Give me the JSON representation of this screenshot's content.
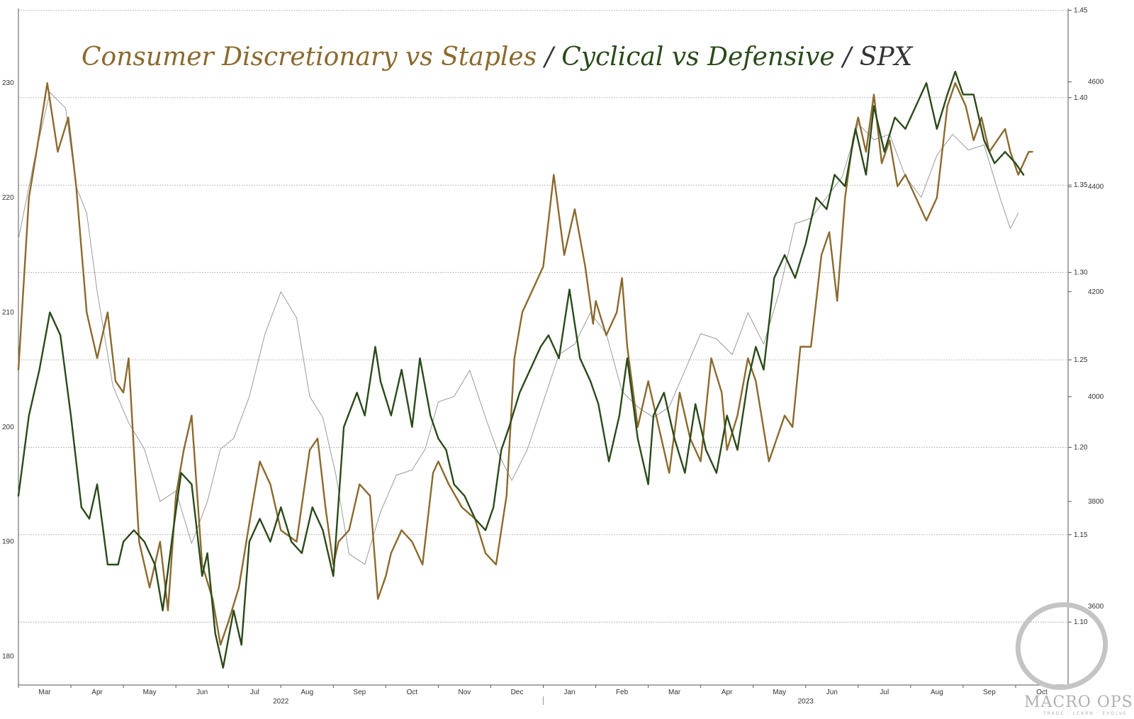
{
  "chart_data": {
    "type": "line",
    "title_parts": [
      {
        "text": "Consumer Discretionary vs Staples",
        "color": "#8a6a2e"
      },
      {
        "text": " / ",
        "color": "#333333"
      },
      {
        "text": "Cyclical vs Defensive",
        "color": "#2a4a1a"
      },
      {
        "text": " / SPX",
        "color": "#333333"
      }
    ],
    "x_months": [
      "Mar",
      "Apr",
      "May",
      "Jun",
      "Jul",
      "Aug",
      "Sep",
      "Oct",
      "Nov",
      "Dec",
      "Jan",
      "Feb",
      "Mar",
      "Apr",
      "May",
      "Jun",
      "Jul",
      "Aug",
      "Sep",
      "Oct"
    ],
    "x_years": [
      "2022",
      "2023"
    ],
    "x_range": [
      0,
      20
    ],
    "left_axis": {
      "ticks": [
        180,
        190,
        200,
        210,
        220,
        230
      ],
      "range": [
        177.5,
        236.5
      ]
    },
    "ratio_axis": {
      "ticks": [
        1.1,
        1.15,
        1.2,
        1.25,
        1.3,
        1.35,
        1.4,
        1.45
      ],
      "range": [
        1.064,
        1.451
      ]
    },
    "spx_axis": {
      "ticks": [
        3600,
        3800,
        4000,
        4200,
        4400,
        4600
      ],
      "range": [
        3450,
        4740
      ]
    },
    "grid": "horizontal dotted",
    "series": [
      {
        "name": "Consumer Discretionary vs Staples",
        "color": "#8a6a2e",
        "axis": "left",
        "x": [
          0,
          0.2,
          0.38,
          0.55,
          0.75,
          0.95,
          1.1,
          1.3,
          1.5,
          1.7,
          1.85,
          2.0,
          2.1,
          2.3,
          2.5,
          2.7,
          2.85,
          3.0,
          3.15,
          3.3,
          3.5,
          3.7,
          3.85,
          4.0,
          4.2,
          4.45,
          4.6,
          4.8,
          5.0,
          5.3,
          5.55,
          5.7,
          5.85,
          6.0,
          6.1,
          6.3,
          6.5,
          6.7,
          6.85,
          7.0,
          7.1,
          7.3,
          7.5,
          7.7,
          7.9,
          8.0,
          8.2,
          8.45,
          8.7,
          8.9,
          9.1,
          9.3,
          9.45,
          9.6,
          9.8,
          10.0,
          10.2,
          10.4,
          10.6,
          10.8,
          10.95,
          11.0,
          11.2,
          11.4,
          11.5,
          11.6,
          11.8,
          12.0,
          12.15,
          12.4,
          12.6,
          12.8,
          13.0,
          13.2,
          13.4,
          13.5,
          13.7,
          13.9,
          14.05,
          14.3,
          14.45,
          14.6,
          14.75,
          14.9,
          15.1,
          15.3,
          15.45,
          15.6,
          15.75,
          15.9,
          16.0,
          16.15,
          16.3,
          16.45,
          16.6,
          16.75,
          16.9,
          17.1,
          17.3,
          17.5,
          17.7,
          17.85,
          18.05,
          18.2,
          18.35,
          18.5,
          18.65,
          18.8,
          18.9,
          19.05,
          19.15,
          19.25,
          19.32
        ],
        "values": [
          205,
          220,
          225,
          230,
          224,
          227,
          221,
          210,
          206,
          210,
          204,
          203,
          206,
          190,
          186,
          190,
          184,
          194,
          198,
          201,
          188,
          185,
          181,
          183,
          186,
          193,
          197,
          195,
          191,
          190,
          198,
          199,
          193,
          188,
          190,
          191,
          195,
          194,
          185,
          187,
          189,
          191,
          190,
          188,
          196,
          197,
          195,
          193,
          192,
          189,
          188,
          194,
          206,
          210,
          212,
          214,
          222,
          215,
          219,
          214,
          209,
          211,
          208,
          210,
          213,
          207,
          200,
          204,
          201,
          196,
          203,
          199,
          197,
          206,
          203,
          198,
          201,
          206,
          204,
          197,
          199,
          201,
          200,
          207,
          207,
          215,
          217,
          211,
          220,
          225,
          227,
          224,
          229,
          223,
          225,
          221,
          222,
          220,
          218,
          220,
          228,
          230,
          228,
          225,
          227,
          224,
          225,
          226,
          224,
          222,
          223,
          224,
          224
        ]
      },
      {
        "name": "Cyclical vs Defensive",
        "color": "#2a4a1a",
        "axis": "left",
        "x": [
          0,
          0.2,
          0.4,
          0.6,
          0.8,
          1.0,
          1.2,
          1.35,
          1.5,
          1.7,
          1.9,
          2.0,
          2.2,
          2.4,
          2.6,
          2.75,
          2.95,
          3.1,
          3.3,
          3.5,
          3.6,
          3.75,
          3.9,
          4.1,
          4.25,
          4.4,
          4.6,
          4.8,
          5.0,
          5.2,
          5.4,
          5.6,
          5.8,
          6.0,
          6.2,
          6.45,
          6.6,
          6.8,
          6.9,
          7.1,
          7.3,
          7.5,
          7.65,
          7.85,
          8.0,
          8.15,
          8.3,
          8.5,
          8.7,
          8.9,
          9.05,
          9.2,
          9.35,
          9.55,
          9.75,
          9.95,
          10.1,
          10.3,
          10.5,
          10.7,
          10.9,
          11.05,
          11.25,
          11.45,
          11.6,
          11.8,
          12.0,
          12.1,
          12.3,
          12.5,
          12.7,
          12.9,
          13.1,
          13.3,
          13.5,
          13.7,
          13.9,
          14.05,
          14.2,
          14.4,
          14.6,
          14.8,
          15.0,
          15.2,
          15.4,
          15.55,
          15.75,
          15.95,
          16.15,
          16.3,
          16.5,
          16.7,
          16.9,
          17.1,
          17.3,
          17.5,
          17.7,
          17.85,
          18.0,
          18.2,
          18.4,
          18.6,
          18.8,
          19.0,
          19.15
        ],
        "values": [
          194,
          201,
          205,
          210,
          208,
          201,
          193,
          192,
          195,
          188,
          188,
          190,
          191,
          190,
          188,
          184,
          191,
          196,
          195,
          187,
          189,
          182,
          179,
          184,
          181,
          190,
          192,
          190,
          193,
          190,
          189,
          193,
          191,
          187,
          200,
          203,
          201,
          207,
          204,
          201,
          205,
          200,
          206,
          201,
          199,
          198,
          195,
          194,
          192,
          191,
          193,
          198,
          200,
          203,
          205,
          207,
          208,
          206,
          212,
          206,
          204,
          202,
          197,
          201,
          206,
          199,
          195,
          201,
          203,
          199,
          196,
          202,
          198,
          196,
          201,
          198,
          204,
          207,
          205,
          213,
          215,
          213,
          216,
          220,
          219,
          222,
          221,
          226,
          222,
          228,
          224,
          227,
          226,
          228,
          230,
          226,
          229,
          231,
          229,
          229,
          225,
          223,
          224,
          223,
          222
        ]
      },
      {
        "name": "SPX",
        "color": "#9a9a9a",
        "axis": "spx",
        "x": [
          0,
          0.3,
          0.6,
          0.9,
          1.1,
          1.3,
          1.5,
          1.8,
          2.1,
          2.4,
          2.7,
          3.0,
          3.3,
          3.6,
          3.85,
          4.1,
          4.4,
          4.7,
          5.0,
          5.3,
          5.55,
          5.8,
          6.05,
          6.3,
          6.6,
          6.9,
          7.2,
          7.5,
          7.75,
          8.0,
          8.3,
          8.6,
          8.9,
          9.15,
          9.4,
          9.7,
          10.0,
          10.3,
          10.6,
          10.9,
          11.2,
          11.5,
          11.8,
          12.1,
          12.4,
          12.7,
          13.0,
          13.3,
          13.6,
          13.9,
          14.2,
          14.5,
          14.8,
          15.1,
          15.4,
          15.7,
          16.0,
          16.3,
          16.6,
          16.9,
          17.2,
          17.5,
          17.8,
          18.1,
          18.4,
          18.7,
          18.9,
          19.05
        ],
        "values": [
          4300,
          4450,
          4580,
          4550,
          4400,
          4350,
          4200,
          4020,
          3950,
          3900,
          3800,
          3820,
          3720,
          3800,
          3900,
          3920,
          4000,
          4120,
          4200,
          4150,
          4000,
          3960,
          3850,
          3700,
          3680,
          3780,
          3850,
          3860,
          3900,
          3990,
          4000,
          4050,
          3960,
          3890,
          3840,
          3900,
          3990,
          4080,
          4100,
          4160,
          4120,
          4010,
          3980,
          3960,
          3980,
          4050,
          4120,
          4110,
          4080,
          4160,
          4100,
          4200,
          4330,
          4340,
          4380,
          4420,
          4520,
          4490,
          4500,
          4420,
          4380,
          4460,
          4500,
          4470,
          4480,
          4380,
          4320,
          4350
        ]
      }
    ]
  },
  "watermark": {
    "text": "MACRO OPS",
    "subtext": "TRADE · LEARN · EVOLVE"
  }
}
